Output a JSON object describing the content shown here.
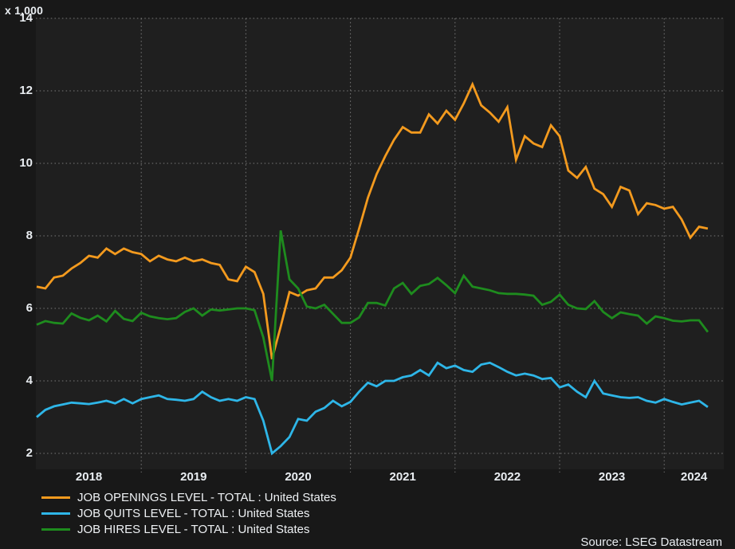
{
  "header": {
    "unit_label": "x 1,000"
  },
  "source": {
    "text": "Source: LSEG Datastream"
  },
  "chart_data": {
    "type": "line",
    "title": "",
    "xlabel": "",
    "ylabel": "",
    "unit_label": "x 1,000",
    "ylim": [
      2,
      14
    ],
    "y_ticks": [
      14,
      12,
      10,
      8,
      6,
      4,
      2
    ],
    "x_ticks": [
      "2018",
      "2019",
      "2020",
      "2021",
      "2022",
      "2023",
      "2024"
    ],
    "grid": "dotted",
    "legend_position": "bottom-left",
    "x_start": "2018-01",
    "x_freq": "monthly",
    "months": [
      "2018-01",
      "2018-02",
      "2018-03",
      "2018-04",
      "2018-05",
      "2018-06",
      "2018-07",
      "2018-08",
      "2018-09",
      "2018-10",
      "2018-11",
      "2018-12",
      "2019-01",
      "2019-02",
      "2019-03",
      "2019-04",
      "2019-05",
      "2019-06",
      "2019-07",
      "2019-08",
      "2019-09",
      "2019-10",
      "2019-11",
      "2019-12",
      "2020-01",
      "2020-02",
      "2020-03",
      "2020-04",
      "2020-05",
      "2020-06",
      "2020-07",
      "2020-08",
      "2020-09",
      "2020-10",
      "2020-11",
      "2020-12",
      "2021-01",
      "2021-02",
      "2021-03",
      "2021-04",
      "2021-05",
      "2021-06",
      "2021-07",
      "2021-08",
      "2021-09",
      "2021-10",
      "2021-11",
      "2021-12",
      "2022-01",
      "2022-02",
      "2022-03",
      "2022-04",
      "2022-05",
      "2022-06",
      "2022-07",
      "2022-08",
      "2022-09",
      "2022-10",
      "2022-11",
      "2022-12",
      "2023-01",
      "2023-02",
      "2023-03",
      "2023-04",
      "2023-05",
      "2023-06",
      "2023-07",
      "2023-08",
      "2023-09",
      "2023-10",
      "2023-11",
      "2023-12",
      "2024-01",
      "2024-02",
      "2024-03",
      "2024-04",
      "2024-05",
      "2024-06"
    ],
    "series": [
      {
        "name": "JOB OPENINGS LEVEL - TOTAL : United States",
        "color": "#f39a1e",
        "values": [
          6.6,
          6.55,
          6.85,
          6.9,
          7.1,
          7.25,
          7.45,
          7.4,
          7.65,
          7.5,
          7.65,
          7.55,
          7.5,
          7.3,
          7.45,
          7.35,
          7.3,
          7.4,
          7.3,
          7.35,
          7.25,
          7.2,
          6.8,
          6.75,
          7.15,
          7.0,
          6.4,
          4.6,
          5.5,
          6.45,
          6.35,
          6.5,
          6.55,
          6.85,
          6.85,
          7.05,
          7.4,
          8.2,
          9.05,
          9.7,
          10.2,
          10.65,
          11.0,
          10.85,
          10.85,
          11.35,
          11.1,
          11.45,
          11.2,
          11.65,
          12.18,
          11.6,
          11.4,
          11.15,
          11.55,
          10.1,
          10.75,
          10.55,
          10.45,
          11.05,
          10.75,
          9.8,
          9.6,
          9.9,
          9.3,
          9.15,
          8.8,
          9.35,
          9.25,
          8.6,
          8.9,
          8.85,
          8.75,
          8.8,
          8.45,
          7.95,
          8.25,
          8.2
        ]
      },
      {
        "name": "JOB QUITS LEVEL - TOTAL : United States",
        "color": "#2eb6e8",
        "values": [
          3.0,
          3.2,
          3.3,
          3.35,
          3.4,
          3.38,
          3.36,
          3.4,
          3.45,
          3.38,
          3.5,
          3.38,
          3.5,
          3.55,
          3.6,
          3.5,
          3.48,
          3.45,
          3.5,
          3.7,
          3.55,
          3.45,
          3.5,
          3.45,
          3.55,
          3.5,
          2.9,
          2.0,
          2.2,
          2.45,
          2.95,
          2.9,
          3.15,
          3.25,
          3.45,
          3.3,
          3.42,
          3.7,
          3.95,
          3.85,
          4.0,
          4.0,
          4.1,
          4.15,
          4.3,
          4.15,
          4.5,
          4.35,
          4.42,
          4.3,
          4.25,
          4.45,
          4.5,
          4.38,
          4.25,
          4.15,
          4.2,
          4.15,
          4.05,
          4.08,
          3.82,
          3.9,
          3.7,
          3.55,
          4.0,
          3.65,
          3.6,
          3.55,
          3.53,
          3.55,
          3.45,
          3.4,
          3.5,
          3.42,
          3.35,
          3.4,
          3.45,
          3.28
        ]
      },
      {
        "name": "JOB HIRES LEVEL - TOTAL : United States",
        "color": "#1e8c1e",
        "values": [
          5.55,
          5.65,
          5.6,
          5.58,
          5.86,
          5.74,
          5.67,
          5.8,
          5.64,
          5.93,
          5.71,
          5.65,
          5.88,
          5.78,
          5.73,
          5.7,
          5.73,
          5.9,
          6.0,
          5.8,
          5.97,
          5.94,
          5.97,
          6.0,
          6.0,
          5.95,
          5.2,
          4.0,
          8.15,
          6.8,
          6.55,
          6.05,
          6.0,
          6.1,
          5.85,
          5.6,
          5.6,
          5.75,
          6.15,
          6.15,
          6.08,
          6.55,
          6.7,
          6.4,
          6.62,
          6.67,
          6.84,
          6.64,
          6.42,
          6.9,
          6.6,
          6.55,
          6.5,
          6.42,
          6.4,
          6.4,
          6.38,
          6.35,
          6.1,
          6.18,
          6.38,
          6.1,
          6.0,
          5.98,
          6.2,
          5.9,
          5.73,
          5.89,
          5.84,
          5.8,
          5.58,
          5.78,
          5.73,
          5.66,
          5.64,
          5.67,
          5.67,
          5.35
        ]
      }
    ]
  }
}
